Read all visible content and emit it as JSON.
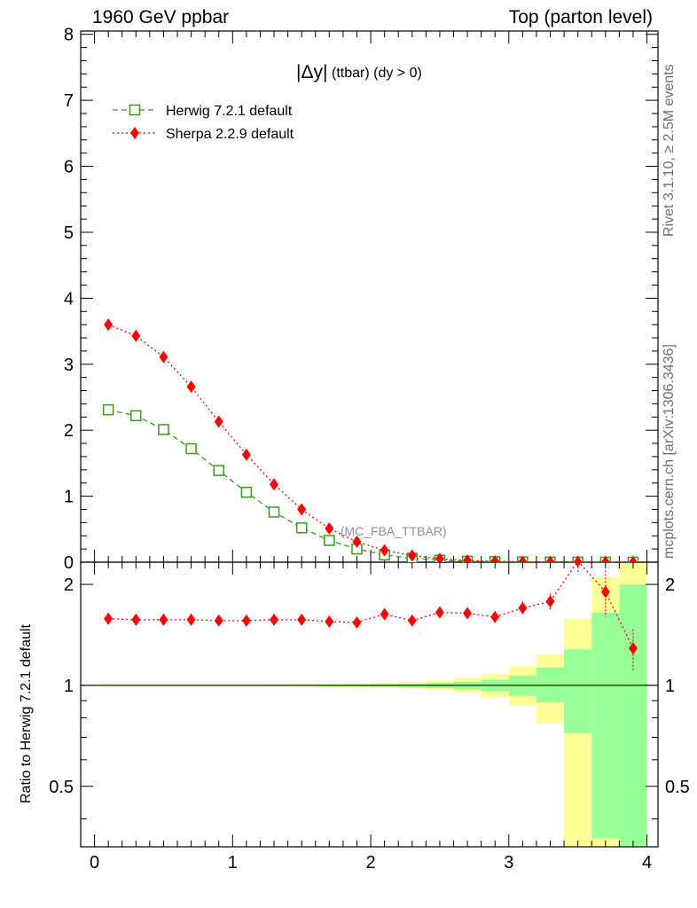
{
  "header": {
    "left": "1960 GeV ppbar",
    "right": "Top (parton level)"
  },
  "side_labels": {
    "rivet": "Rivet 3.1.10, ≥ 2.5M events",
    "mcplots": "mcplots.cern.ch [arXiv:1306.3436]"
  },
  "colors": {
    "herwig": "#3a9a1a",
    "sherpa": "#ff0000",
    "band_inner": "#99ff99",
    "band_outer": "#ffff99",
    "watermark": "#909090"
  },
  "chart_data": [
    {
      "type": "line",
      "panel": "main",
      "title_main": "|Δy|",
      "title_sub": "(ttbar) (dy > 0)",
      "watermark": "(MC_FBA_TTBAR)",
      "xlim": [
        -0.1,
        4.08
      ],
      "ylim": [
        0,
        8.05
      ],
      "yticks": [
        0,
        1,
        2,
        3,
        4,
        5,
        6,
        7,
        8
      ],
      "legend_position": "top-left",
      "x": [
        0.1,
        0.3,
        0.5,
        0.7,
        0.9,
        1.1,
        1.3,
        1.5,
        1.7,
        1.9,
        2.1,
        2.3,
        2.5,
        2.7,
        2.9,
        3.1,
        3.3,
        3.5,
        3.7,
        3.9
      ],
      "series": [
        {
          "name": "Herwig 7.2.1 default",
          "marker": "open-square",
          "style": "dashed",
          "values": [
            2.31,
            2.22,
            2.01,
            1.72,
            1.39,
            1.06,
            0.76,
            0.52,
            0.33,
            0.2,
            0.11,
            0.06,
            0.03,
            0.015,
            0.008,
            0.004,
            0.002,
            0.001,
            0.0005,
            0.0002
          ]
        },
        {
          "name": "Sherpa 2.2.9 default",
          "marker": "filled-diamond",
          "style": "dotted",
          "values": [
            3.6,
            3.43,
            3.11,
            2.66,
            2.13,
            1.63,
            1.18,
            0.8,
            0.51,
            0.31,
            0.18,
            0.1,
            0.05,
            0.025,
            0.013,
            0.007,
            0.004,
            0.002,
            0.001,
            0.0003
          ]
        }
      ]
    },
    {
      "type": "line",
      "panel": "ratio",
      "ylabel": "Ratio to Herwig 7.2.1 default",
      "xlim": [
        -0.1,
        4.08
      ],
      "ylim": [
        0.33,
        2.33
      ],
      "ylog": true,
      "yticks": [
        0.5,
        1,
        2
      ],
      "xticks": [
        0,
        1,
        2,
        3,
        4
      ],
      "x": [
        0.1,
        0.3,
        0.5,
        0.7,
        0.9,
        1.1,
        1.3,
        1.5,
        1.7,
        1.9,
        2.1,
        2.3,
        2.5,
        2.7,
        2.9,
        3.1,
        3.3,
        3.5,
        3.7,
        3.9
      ],
      "bins": [
        [
          0.0,
          0.2
        ],
        [
          0.2,
          0.4
        ],
        [
          0.4,
          0.6
        ],
        [
          0.6,
          0.8
        ],
        [
          0.8,
          1.0
        ],
        [
          1.0,
          1.2
        ],
        [
          1.2,
          1.4
        ],
        [
          1.4,
          1.6
        ],
        [
          1.6,
          1.8
        ],
        [
          1.8,
          2.0
        ],
        [
          2.0,
          2.2
        ],
        [
          2.2,
          2.4
        ],
        [
          2.4,
          2.6
        ],
        [
          2.6,
          2.8
        ],
        [
          2.8,
          3.0
        ],
        [
          3.0,
          3.2
        ],
        [
          3.2,
          3.4
        ],
        [
          3.4,
          3.6
        ],
        [
          3.6,
          3.8
        ],
        [
          3.8,
          4.0
        ]
      ],
      "band_inner": [
        [
          0.998,
          1.002
        ],
        [
          0.998,
          1.002
        ],
        [
          0.998,
          1.002
        ],
        [
          0.998,
          1.002
        ],
        [
          0.998,
          1.002
        ],
        [
          0.998,
          1.002
        ],
        [
          0.997,
          1.003
        ],
        [
          0.996,
          1.004
        ],
        [
          0.995,
          1.005
        ],
        [
          0.994,
          1.006
        ],
        [
          0.992,
          1.008
        ],
        [
          0.989,
          1.011
        ],
        [
          0.984,
          1.016
        ],
        [
          0.975,
          1.025
        ],
        [
          0.96,
          1.04
        ],
        [
          0.93,
          1.07
        ],
        [
          0.89,
          1.13
        ],
        [
          0.72,
          1.28
        ],
        [
          0.35,
          1.65
        ],
        [
          0.33,
          2.0
        ]
      ],
      "band_outer": [
        [
          0.996,
          1.004
        ],
        [
          0.996,
          1.004
        ],
        [
          0.996,
          1.004
        ],
        [
          0.996,
          1.004
        ],
        [
          0.996,
          1.004
        ],
        [
          0.995,
          1.005
        ],
        [
          0.994,
          1.006
        ],
        [
          0.992,
          1.008
        ],
        [
          0.99,
          1.01
        ],
        [
          0.988,
          1.012
        ],
        [
          0.985,
          1.015
        ],
        [
          0.979,
          1.021
        ],
        [
          0.968,
          1.032
        ],
        [
          0.95,
          1.05
        ],
        [
          0.92,
          1.08
        ],
        [
          0.87,
          1.14
        ],
        [
          0.77,
          1.24
        ],
        [
          0.33,
          1.58
        ],
        [
          0.33,
          2.1
        ],
        [
          0.33,
          2.33
        ]
      ],
      "series": [
        {
          "name": "Herwig 7.2.1 default",
          "values": [
            1,
            1,
            1,
            1,
            1,
            1,
            1,
            1,
            1,
            1,
            1,
            1,
            1,
            1,
            1,
            1,
            1,
            1,
            1,
            1
          ]
        },
        {
          "name": "Sherpa 2.2.9 default",
          "values": [
            1.58,
            1.57,
            1.57,
            1.57,
            1.56,
            1.56,
            1.57,
            1.57,
            1.55,
            1.54,
            1.63,
            1.56,
            1.65,
            1.64,
            1.6,
            1.7,
            1.78,
            2.35,
            1.9,
            1.29
          ],
          "err": [
            0.01,
            0.01,
            0.01,
            0.01,
            0.01,
            0.01,
            0.01,
            0.01,
            0.015,
            0.02,
            0.025,
            0.03,
            0.035,
            0.05,
            0.06,
            0.08,
            0.1,
            0.2,
            0.3,
            0.18
          ]
        }
      ]
    }
  ]
}
